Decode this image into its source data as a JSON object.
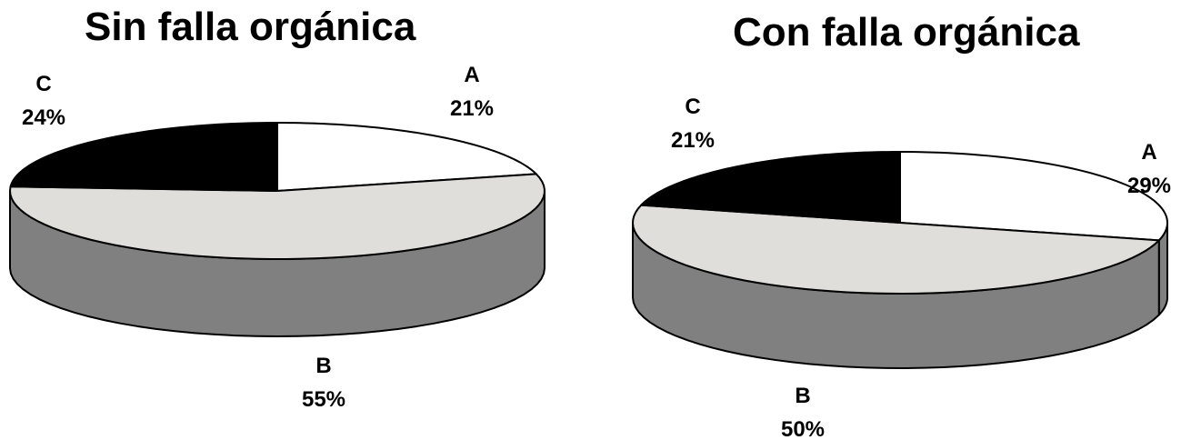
{
  "chart_data": [
    {
      "type": "pie",
      "title": "Sin falla orgánica",
      "slices": [
        {
          "label": "A",
          "value": 21,
          "value_label": "21%",
          "color": "#ffffff"
        },
        {
          "label": "B",
          "value": 55,
          "value_label": "55%",
          "color": "#e0dedb"
        },
        {
          "label": "C",
          "value": 24,
          "value_label": "24%",
          "color": "#000000"
        }
      ],
      "side_color": "#808080"
    },
    {
      "type": "pie",
      "title": "Con falla orgánica",
      "slices": [
        {
          "label": "A",
          "value": 29,
          "value_label": "29%",
          "color": "#ffffff"
        },
        {
          "label": "B",
          "value": 50,
          "value_label": "50%",
          "color": "#e0dedb"
        },
        {
          "label": "C",
          "value": 21,
          "value_label": "21%",
          "color": "#000000"
        }
      ],
      "side_color": "#808080"
    }
  ]
}
